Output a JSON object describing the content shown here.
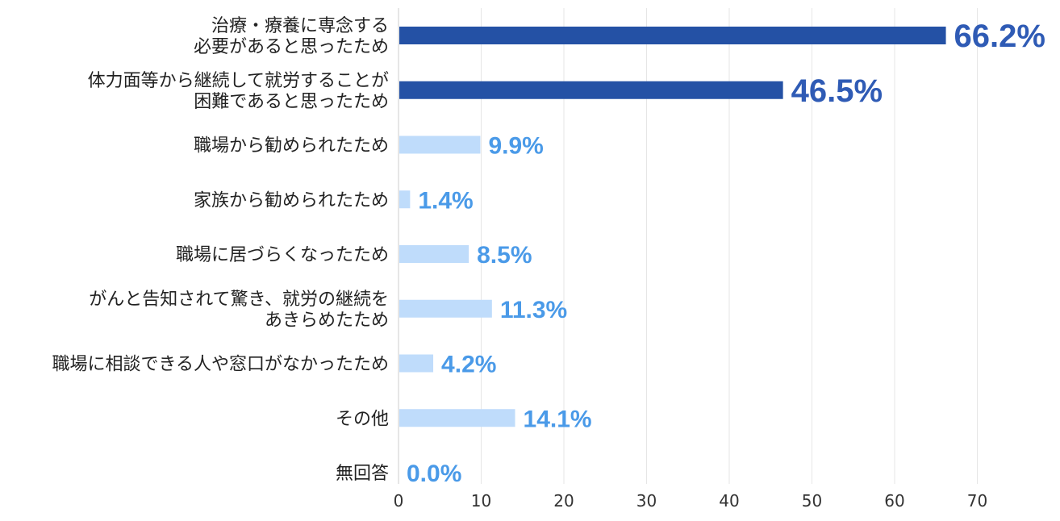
{
  "chart_data": {
    "type": "bar",
    "orientation": "horizontal",
    "title": "",
    "xlabel": "",
    "ylabel": "",
    "xlim": [
      0,
      70
    ],
    "xticks": [
      0,
      10,
      20,
      30,
      40,
      50,
      60,
      70
    ],
    "grid": true,
    "categories": [
      [
        "治療・療養に専念する",
        "必要があると思ったため"
      ],
      [
        "体力面等から継続して就労することが",
        "困難であると思ったため"
      ],
      [
        "職場から勧められたため"
      ],
      [
        "家族から勧められたため"
      ],
      [
        "職場に居づらくなったため"
      ],
      [
        "がんと告知されて驚き、就労の継続を",
        "あきらめたため"
      ],
      [
        "職場に相談できる人や窓口がなかったため"
      ],
      [
        "その他"
      ],
      [
        "無回答"
      ]
    ],
    "values": [
      66.2,
      46.5,
      9.9,
      1.4,
      8.5,
      11.3,
      4.2,
      14.1,
      0.0
    ],
    "value_labels": [
      "66.2%",
      "46.5%",
      "9.9%",
      "1.4%",
      "8.5%",
      "11.3%",
      "4.2%",
      "14.1%",
      "0.0%"
    ],
    "highlighted": [
      true,
      true,
      false,
      false,
      false,
      false,
      false,
      false,
      false
    ],
    "colors": {
      "highlight_bar": "#2451a5",
      "highlight_label": "#2f5bb5",
      "normal_bar": "#bfdcfb",
      "normal_label": "#4a9ae8",
      "grid": "#e6e6e6",
      "axis": "#cccccc"
    }
  }
}
